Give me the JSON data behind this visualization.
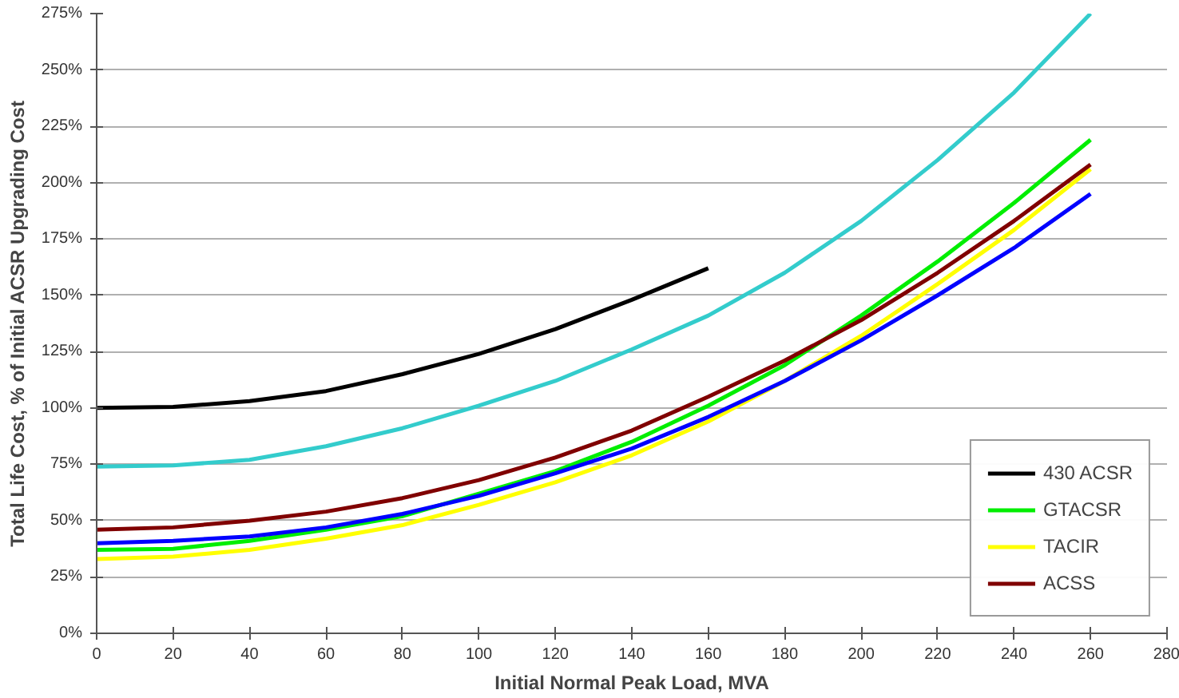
{
  "chart_data": {
    "type": "line",
    "xlabel": "Initial Normal Peak Load, MVA",
    "ylabel": "Total Life Cost, % of Initial ACSR Upgrading Cost",
    "x": [
      0,
      20,
      40,
      60,
      80,
      100,
      120,
      140,
      160,
      180,
      200,
      220,
      240,
      260
    ],
    "series": [
      {
        "name": "430 ACSR",
        "color": "#000000",
        "values": [
          100,
          100.5,
          103,
          107.5,
          115,
          124,
          135,
          148,
          162,
          null,
          null,
          null,
          null,
          null
        ]
      },
      {
        "name": "GTACSR",
        "color": "#00ee00",
        "values": [
          37,
          37.5,
          41,
          46,
          52,
          62,
          72,
          85,
          101,
          119,
          141,
          165,
          191,
          219
        ]
      },
      {
        "name": "TACIR",
        "color": "#ffff00",
        "values": [
          33,
          34,
          37,
          42,
          48,
          57,
          67,
          79,
          94,
          112,
          132,
          155,
          179,
          206
        ]
      },
      {
        "name": "ACSS",
        "color": "#800000",
        "values": [
          46,
          47,
          50,
          54,
          60,
          68,
          78,
          90,
          105,
          121,
          139,
          160,
          183,
          208
        ]
      },
      {
        "color": "#0000ff",
        "values": [
          40,
          41,
          43,
          47,
          53,
          61,
          71,
          82,
          96,
          112,
          130,
          150,
          171,
          195
        ]
      },
      {
        "color": "#33cccc",
        "values": [
          74,
          74.5,
          77,
          83,
          91,
          101,
          112,
          126,
          141,
          160,
          183,
          210,
          240,
          275
        ]
      }
    ],
    "xlim": [
      0,
      280
    ],
    "xticks": [
      0,
      20,
      40,
      60,
      80,
      100,
      120,
      140,
      160,
      180,
      200,
      220,
      240,
      260,
      280
    ],
    "ylim": [
      0,
      275
    ],
    "yticks": [
      {
        "value": 0,
        "label": "0%"
      },
      {
        "value": 25,
        "label": "25%"
      },
      {
        "value": 50,
        "label": "50%"
      },
      {
        "value": 75,
        "label": "75%"
      },
      {
        "value": 100,
        "label": "100%"
      },
      {
        "value": 125,
        "label": "125%"
      },
      {
        "value": 150,
        "label": "150%"
      },
      {
        "value": 175,
        "label": "175%"
      },
      {
        "value": 200,
        "label": "200%"
      },
      {
        "value": 225,
        "label": "225%"
      },
      {
        "value": 250,
        "label": "250%"
      },
      {
        "value": 275,
        "label": "275%"
      }
    ],
    "grid": "y",
    "legend": "bottom right"
  }
}
